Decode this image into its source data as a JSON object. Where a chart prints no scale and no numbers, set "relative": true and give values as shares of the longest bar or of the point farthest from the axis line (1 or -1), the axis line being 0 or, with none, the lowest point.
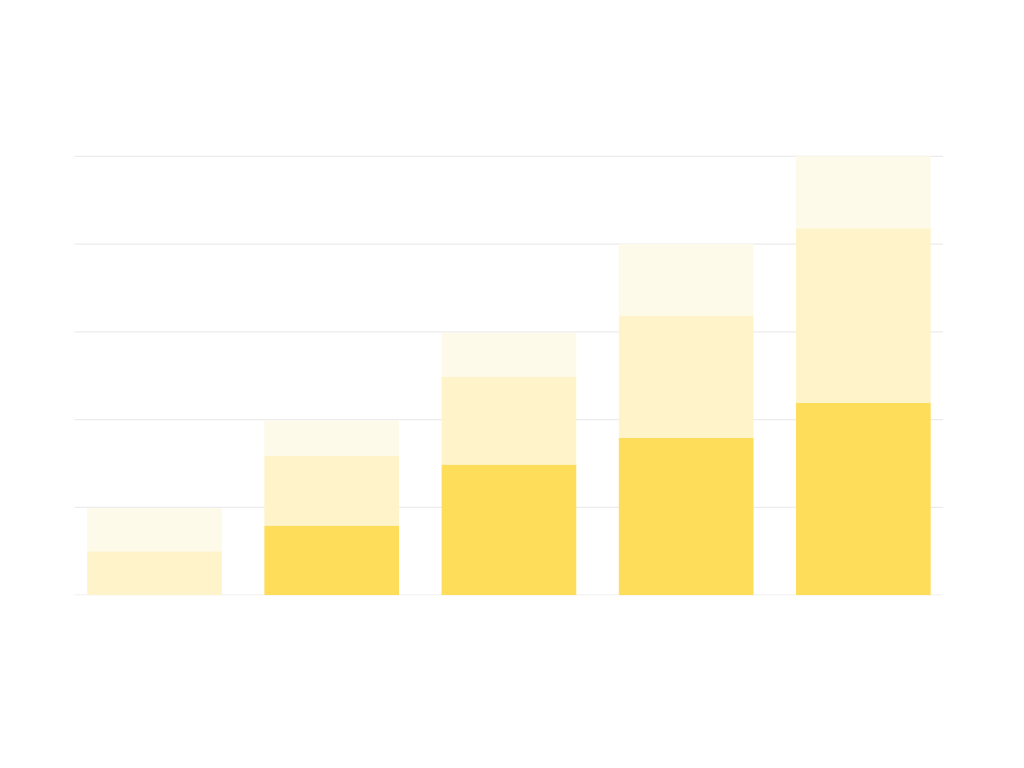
{
  "chart_data": {
    "type": "bar",
    "relative": true,
    "stacked": true,
    "categories": [
      null,
      null,
      null,
      null,
      null
    ],
    "series": [
      {
        "color": "#fedd5a",
        "values": [
          0,
          0.159,
          0.298,
          0.359,
          0.438
        ]
      },
      {
        "color": "#fef3c9",
        "values": [
          0.1,
          0.159,
          0.2,
          0.277,
          0.398
        ]
      },
      {
        "color": "#fefae9",
        "values": [
          0.098,
          0.08,
          0.1,
          0.164,
          0.164
        ]
      }
    ],
    "grid": "y"
  }
}
